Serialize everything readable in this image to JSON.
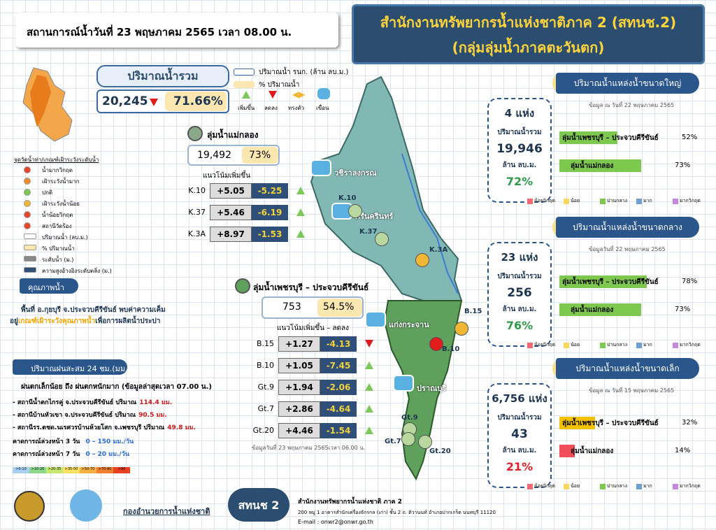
{
  "header": {
    "title": "สถานการณ์น้ำวันที่  23 พฤษภาคม 2565 เวลา 08.00 น."
  },
  "agency": {
    "name": "สำนักงานทรัพยากรน้ำแห่งชาติภาค 2 (สทนช.2)",
    "region": "(กลุ่มลุ่มน้ำภาคตะวันตก)"
  },
  "total": {
    "label": "ปริมาณน้ำรวม",
    "volume": "20,245",
    "percent": "71.66%"
  },
  "key": {
    "volume": "ปริมาณน้ำ รนก. (ล้าน ลบ.ม.)",
    "percent": "% ปริมาณน้ำ",
    "up": "เพิ่มขึ้น",
    "down": "ลดลง",
    "steady": "ทรงตัว",
    "dam": "เขื่อน"
  },
  "station_legend": {
    "title": "จุดวัดน้ำท่า/เกณฑ์เฝ้าระวังระดับน้ำ",
    "items": [
      "น้ำมากวิกฤต",
      "เฝ้าระวังน้ำมาก",
      "ปกติ",
      "เฝ้าระวังน้ำน้อย",
      "น้ำน้อยวิกฤต",
      "สถานีวัดร้อง",
      "ปริมาณน้ำ (ลบ.ม.)",
      "% ปริมาณน้ำ",
      "ระดับน้ำ (ม.)",
      "ความสูงอ้างอิงระดับตลิ่ง (ม.)"
    ]
  },
  "quality": {
    "title": "คุณภาพน้ำ",
    "line_1": "พื้นที่ อ.กุยบุรี จ.ประจวบคีรีขันธ์ พบค่าความเค็ม",
    "line_2a": "อยู่",
    "line_2b": "เกณฑ์เฝ้าระวังคุณภาพน้ำ",
    "line_2c": "เพื่อการผลิตน้ำประปา"
  },
  "rain": {
    "title": "ปริมาณฝนสะสม 24 ชม.(มม.)",
    "summary": "ฝนตกเล็กน้อย ถึง ฝนตกหนักมาก  (ข้อมูลล่าสุดเวลา 07.00 น.)",
    "stations": [
      {
        "text": "- สถานีน้ำตกไกรคู่ จ.ประจวบคีรีขันธ์ ปริมาณ",
        "amount": "114.4 มม."
      },
      {
        "text": "- สถานีบ้านหัวเขา จ.ประจวบคีรีขันธ์ ปริมาณ",
        "amount": "90.5 มม."
      },
      {
        "text": "- สถานีรร.ตชด.นเรศวรบ้านห้วยโสก จ.เพชรบุรี ปริมาณ",
        "amount": "49.8 มม."
      }
    ],
    "forecasts": [
      {
        "text": "คาดการณ์ล่วงหน้า 3 วัน",
        "range": "0 – 150 มม./วัน"
      },
      {
        "text": "คาดการณ์ล่วงหน้า 7 วัน",
        "range": "0 – 20 มม./วัน"
      }
    ],
    "scale": [
      ">0-10",
      ">10-20",
      ">20-35",
      ">35-50",
      ">50-70",
      ">70-90",
      ">90"
    ]
  },
  "basins": [
    {
      "name": "ลุ่มน้ำแม่กลอง",
      "volume": "19,492",
      "percent": "73%",
      "trend": "แนวโน้มเพิ่มขึ้น",
      "rows": [
        [
          "K.10",
          "+5.05",
          "-5.25"
        ],
        [
          "K.37",
          "+5.46",
          "-6.19"
        ],
        [
          "K.3A",
          "+8.97",
          "-1.53"
        ]
      ]
    },
    {
      "name": "ลุ่มน้ำเพชรบุรี – ประจวบคีรีขันธ์",
      "volume": "753",
      "percent": "54.5%",
      "trend": "แนวโน้มเพิ่มขึ้น  – ลดลง",
      "rows": [
        [
          "B.15",
          "+1.27",
          "-4.13"
        ],
        [
          "B.10",
          "+1.05",
          "-7.45"
        ],
        [
          "Gt.9",
          "+1.94",
          "-2.06"
        ],
        [
          "Gt.7",
          "+2.86",
          "-4.64"
        ],
        [
          "Gt.20",
          "+4.46",
          "-1.54"
        ]
      ],
      "note": "ข้อมูลวันที่ 23 พฤษภาคม 2565เวลา 06.00 น."
    }
  ],
  "map": {
    "dams": [
      "วชิราลงกรณ",
      "ศรีนครินทร์",
      "แก่งกระจาน",
      "ปราณบุรี"
    ],
    "stations": [
      "K.10",
      "K.37",
      "K.3A",
      "B.15",
      "B.10",
      "Gt.9",
      "Gt.7",
      "Gt.20"
    ]
  },
  "reservoirs": [
    {
      "title": "ปริมาณน้ำแหล่งน้ำขนาดใหญ่",
      "date": "ข้อมูล ณ วันที่   22 พฤษภาคม 2565",
      "count": "4 แห่ง",
      "total_label": "ปริมาณน้ำรวม",
      "volume": "19,946",
      "unit": "ล้าน ลบ.ม.",
      "percent": "72%",
      "percent_color": "#2e9a4a",
      "bars": [
        {
          "name": "ลุ่มน้ำเพชรบุรี – ประจวบคีรีขันธ์",
          "value": 52,
          "label": "52%",
          "color": "#7ec850"
        },
        {
          "name": "ลุ่มน้ำแม่กลอง",
          "value": 73,
          "label": "73%",
          "color": "#7ec850"
        }
      ]
    },
    {
      "title": "ปริมาณน้ำแหล่งน้ำขนาดกลาง",
      "date": "ข้อมูลวันที่ 22 พฤษภาคม 2565",
      "count": "23 แห่ง",
      "total_label": "ปริมาณน้ำรวม",
      "volume": "256",
      "unit": "ล้าน ลบ.ม.",
      "percent": "76%",
      "percent_color": "#2e9a4a",
      "bars": [
        {
          "name": "ลุ่มน้ำเพชรบุรี – ประจวบคีรีขันธ์",
          "value": 78,
          "label": "78%",
          "color": "#7ec850"
        },
        {
          "name": "ลุ่มน้ำแม่กลอง",
          "value": 73,
          "label": "73%",
          "color": "#7ec850"
        }
      ]
    },
    {
      "title": "ปริมาณน้ำแหล่งน้ำขนาดเล็ก",
      "date": "ข้อมูล ณ วันที่ 15 พฤษภาคม 2565",
      "count": "6,756 แห่ง",
      "total_label": "ปริมาณน้ำรวม",
      "volume": "43",
      "unit": "ล้าน ลบ.ม.",
      "percent": "21%",
      "percent_color": "#e0202a",
      "bars": [
        {
          "name": "ลุ่มน้ำเพชรบุรี – ประจวบคีรีขันธ์",
          "value": 32,
          "label": "32%",
          "color": "#f2c200"
        },
        {
          "name": "ลุ่มน้ำแม่กลอง",
          "value": 14,
          "label": "14%",
          "color": "#ef4d5a"
        }
      ]
    }
  ],
  "scale_labels": [
    "น้อยวิกฤต",
    "น้อย",
    "ปานกลาง",
    "มาก",
    "มากวิกฤต"
  ],
  "footer": {
    "logo_text": "กองอำนวยการน้ำแห่งชาติ",
    "badge": "สทนช 2",
    "office": "สำนักงานทรัพยากรน้ำแห่งชาติ ภาค 2",
    "address": "200  หมู่ 1 อาคารสำนักเครื่องจักรกล (เก่า) ชั้น 2 ถ. ติวานนท์ อำเภอปากเกร็ด นนทบุรี 11120",
    "email": "E-mail : onwr2@onwr.go.th"
  }
}
